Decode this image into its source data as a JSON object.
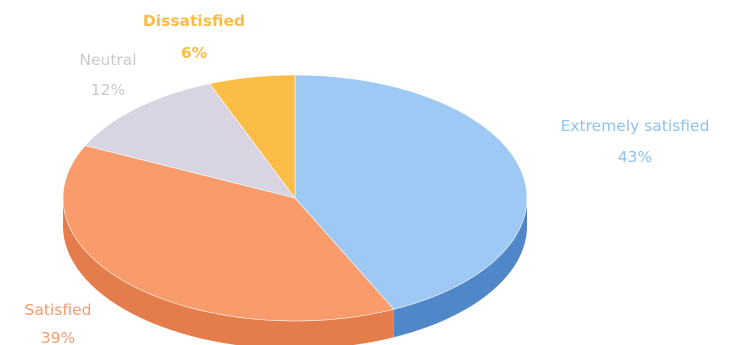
{
  "chart_data": {
    "type": "pie",
    "style": "3d-exploded-none",
    "slices": [
      {
        "label": "Extremely satisfied",
        "value": 43,
        "value_label": "43%",
        "color": "#9ec9f4",
        "side_color": "#4f87c8",
        "label_color": "#8fc1ee"
      },
      {
        "label": "Satisfied",
        "value": 39,
        "value_label": "39%",
        "color": "#f99b6a",
        "side_color": "#e57c4b",
        "label_color": "#f39a6e"
      },
      {
        "label": "Neutral",
        "value": 12,
        "value_label": "12%",
        "color": "#d8d4e1",
        "side_color": "#bdb8c9",
        "label_color": "#c9c9c9"
      },
      {
        "label": "Dissatisfied",
        "value": 6,
        "value_label": "6%",
        "color": "#fbbd46",
        "side_color": "#e6a22b",
        "label_color": "#f9bc49"
      }
    ]
  }
}
